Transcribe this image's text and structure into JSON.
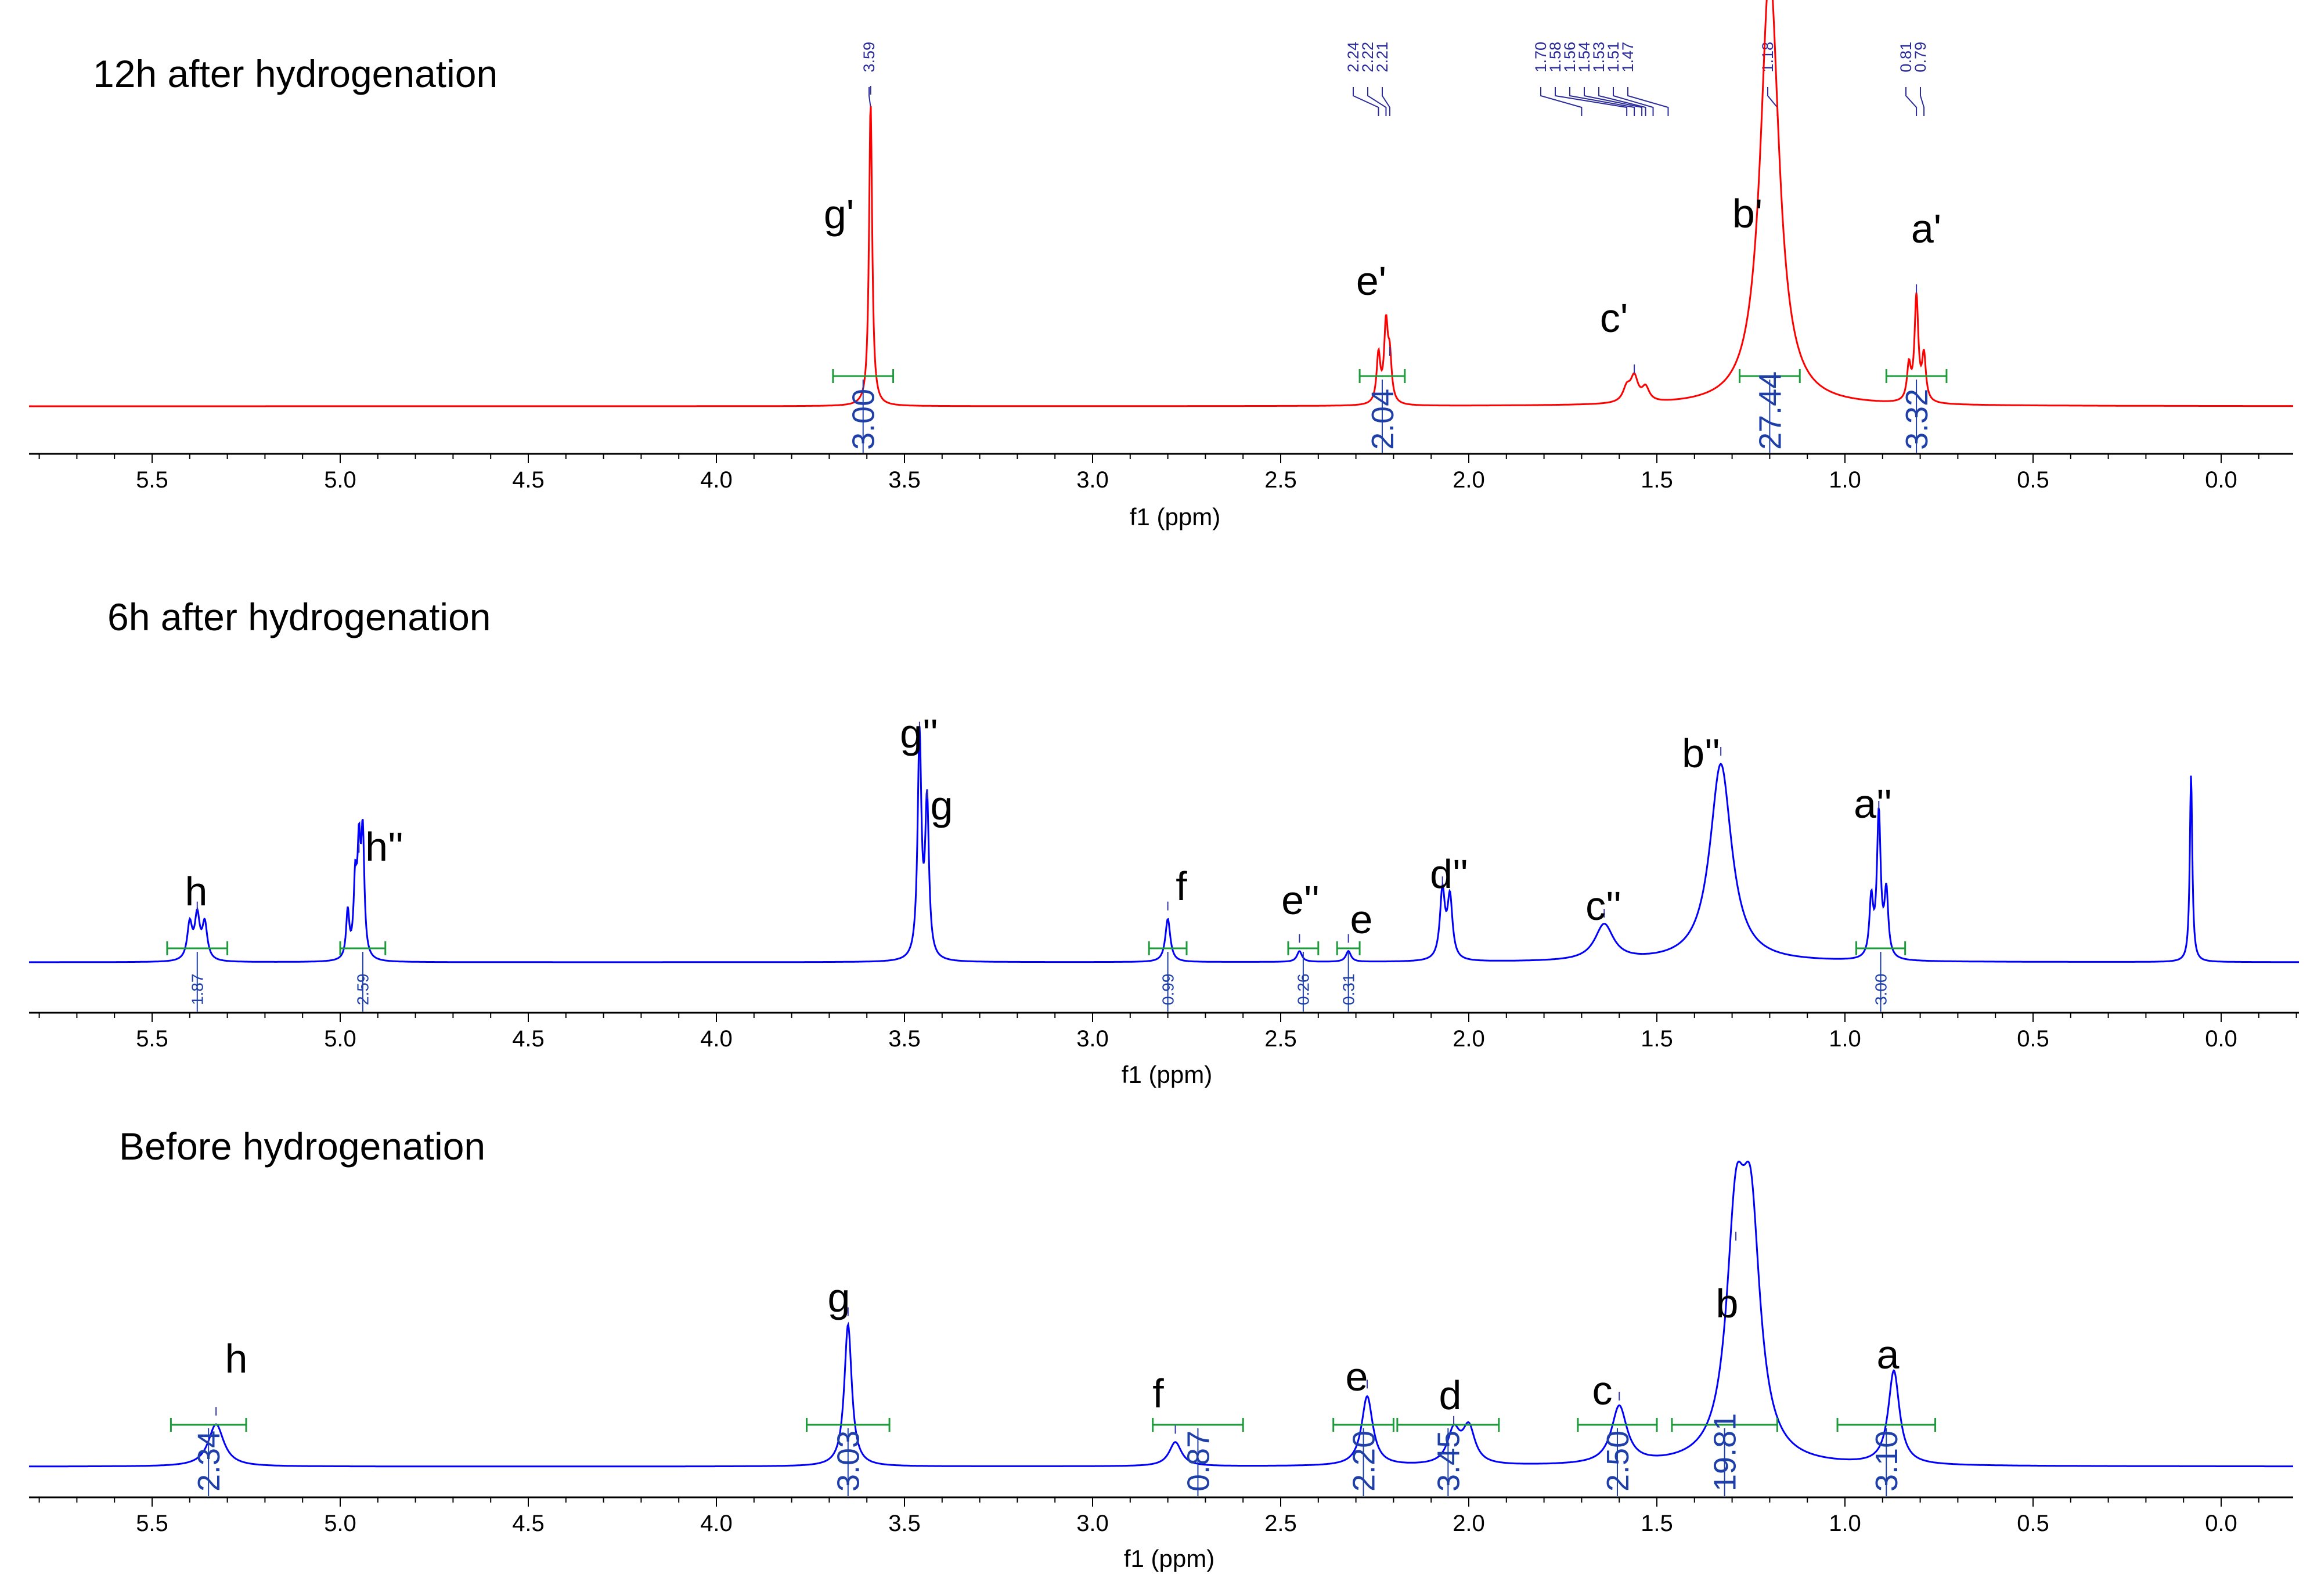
{
  "chart_data": [
    {
      "type": "line",
      "title": "12h after hydrogenation",
      "xlabel": "f1 (ppm)",
      "xlim": [
        5.8,
        -0.2
      ],
      "ticks": [
        "5.5",
        "5.0",
        "4.5",
        "4.0",
        "3.5",
        "3.0",
        "2.5",
        "2.0",
        "1.5",
        "1.0",
        "0.5",
        "0.0"
      ],
      "color": "#ff0000",
      "peaks": [
        {
          "x": 3.59,
          "h": 0.87,
          "w": 0.005,
          "label": "g'"
        },
        {
          "x": 2.24,
          "h": 0.14,
          "w": 0.006
        },
        {
          "x": 2.22,
          "h": 0.22,
          "w": 0.006
        },
        {
          "x": 2.21,
          "h": 0.12,
          "w": 0.006,
          "label": "e'"
        },
        {
          "x": 1.58,
          "h": 0.04,
          "w": 0.012
        },
        {
          "x": 1.56,
          "h": 0.07,
          "w": 0.012,
          "label": "c'"
        },
        {
          "x": 1.53,
          "h": 0.04,
          "w": 0.012
        },
        {
          "x": 1.2,
          "h": 1.25,
          "w": 0.03,
          "label": "b'"
        },
        {
          "x": 0.81,
          "h": 0.3,
          "w": 0.006,
          "label": "a'"
        },
        {
          "x": 0.83,
          "h": 0.1,
          "w": 0.006
        },
        {
          "x": 0.79,
          "h": 0.13,
          "w": 0.006
        }
      ],
      "shift_labels": [
        "3.59",
        "2.24",
        "2.22",
        "2.21",
        "1.70",
        "1.58",
        "1.56",
        "1.54",
        "1.53",
        "1.51",
        "1.47",
        "1.18",
        "0.81",
        "0.79"
      ],
      "integrals": [
        {
          "from": 3.69,
          "to": 3.53,
          "value": "3.00"
        },
        {
          "from": 2.29,
          "to": 2.17,
          "value": "2.04"
        },
        {
          "from": 1.28,
          "to": 1.12,
          "value": "27.44"
        },
        {
          "from": 0.89,
          "to": 0.73,
          "value": "3.32"
        }
      ]
    },
    {
      "type": "line",
      "title": "6h after hydrogenation",
      "xlabel": "f1 (ppm)",
      "xlim": [
        5.8,
        -0.2
      ],
      "ticks": [
        "5.5",
        "5.0",
        "4.5",
        "4.0",
        "3.5",
        "3.0",
        "2.5",
        "2.0",
        "1.5",
        "1.0",
        "0.5",
        "0.0"
      ],
      "color": "#0000ff",
      "peaks": [
        {
          "x": 5.4,
          "h": 0.1,
          "w": 0.008
        },
        {
          "x": 5.38,
          "h": 0.12,
          "w": 0.008,
          "label": "h"
        },
        {
          "x": 5.36,
          "h": 0.1,
          "w": 0.008
        },
        {
          "x": 4.98,
          "h": 0.13,
          "w": 0.005
        },
        {
          "x": 4.96,
          "h": 0.2,
          "w": 0.005
        },
        {
          "x": 4.95,
          "h": 0.28,
          "w": 0.005,
          "label": "h''"
        },
        {
          "x": 4.94,
          "h": 0.33,
          "w": 0.005
        },
        {
          "x": 3.46,
          "h": 0.62,
          "w": 0.006,
          "label": "g''"
        },
        {
          "x": 3.44,
          "h": 0.43,
          "w": 0.006,
          "label": "g"
        },
        {
          "x": 2.8,
          "h": 0.12,
          "w": 0.008,
          "label": "f"
        },
        {
          "x": 2.45,
          "h": 0.03,
          "w": 0.008,
          "label": "e''"
        },
        {
          "x": 2.32,
          "h": 0.03,
          "w": 0.008,
          "label": "e"
        },
        {
          "x": 2.07,
          "h": 0.19,
          "w": 0.008,
          "label": "d''"
        },
        {
          "x": 2.05,
          "h": 0.17,
          "w": 0.008
        },
        {
          "x": 1.64,
          "h": 0.1,
          "w": 0.03,
          "label": "c''"
        },
        {
          "x": 1.33,
          "h": 0.55,
          "w": 0.035,
          "label": "b''"
        },
        {
          "x": 0.91,
          "h": 0.4,
          "w": 0.006,
          "label": "a''"
        },
        {
          "x": 0.93,
          "h": 0.16,
          "w": 0.006
        },
        {
          "x": 0.89,
          "h": 0.18,
          "w": 0.006
        },
        {
          "x": 0.08,
          "h": 0.52,
          "w": 0.004
        }
      ],
      "integrals": [
        {
          "from": 5.46,
          "to": 5.3,
          "value": "1.87"
        },
        {
          "from": 5.0,
          "to": 4.88,
          "value": "2.59"
        },
        {
          "from": 2.85,
          "to": 2.75,
          "value": "0.99"
        },
        {
          "from": 2.48,
          "to": 2.4,
          "value": "0.26"
        },
        {
          "from": 2.35,
          "to": 2.29,
          "value": "0.31"
        },
        {
          "from": 0.97,
          "to": 0.84,
          "value": "3.00"
        }
      ]
    },
    {
      "type": "line",
      "title": "Before hydrogenation",
      "xlabel": "f1 (ppm)",
      "xlim": [
        5.8,
        -0.2
      ],
      "ticks": [
        "5.5",
        "5.0",
        "4.5",
        "4.0",
        "3.5",
        "3.0",
        "2.5",
        "2.0",
        "1.5",
        "1.0",
        "0.5",
        "0.0"
      ],
      "color": "#0000ff",
      "peaks": [
        {
          "x": 5.33,
          "h": 0.14,
          "w": 0.025,
          "label": "h"
        },
        {
          "x": 3.65,
          "h": 0.47,
          "w": 0.012,
          "label": "g"
        },
        {
          "x": 2.78,
          "h": 0.08,
          "w": 0.02,
          "label": "f"
        },
        {
          "x": 2.27,
          "h": 0.23,
          "w": 0.018,
          "label": "e"
        },
        {
          "x": 2.04,
          "h": 0.11,
          "w": 0.02,
          "label": "d"
        },
        {
          "x": 2.0,
          "h": 0.12,
          "w": 0.02
        },
        {
          "x": 1.6,
          "h": 0.19,
          "w": 0.025,
          "label": "c"
        },
        {
          "x": 1.29,
          "h": 0.72,
          "w": 0.03,
          "label": "b"
        },
        {
          "x": 1.25,
          "h": 0.72,
          "w": 0.03
        },
        {
          "x": 0.87,
          "h": 0.31,
          "w": 0.018,
          "label": "a"
        }
      ],
      "integrals": [
        {
          "from": 5.45,
          "to": 5.25,
          "value": "2.34"
        },
        {
          "from": 3.76,
          "to": 3.54,
          "value": "3.03"
        },
        {
          "from": 2.84,
          "to": 2.6,
          "value": "0.87"
        },
        {
          "from": 2.36,
          "to": 2.2,
          "value": "2.20"
        },
        {
          "from": 2.19,
          "to": 1.92,
          "value": "3.45"
        },
        {
          "from": 1.71,
          "to": 1.5,
          "value": "2.50"
        },
        {
          "from": 1.46,
          "to": 1.18,
          "value": "19.81"
        },
        {
          "from": 1.02,
          "to": 0.76,
          "value": "3.10"
        }
      ]
    }
  ]
}
